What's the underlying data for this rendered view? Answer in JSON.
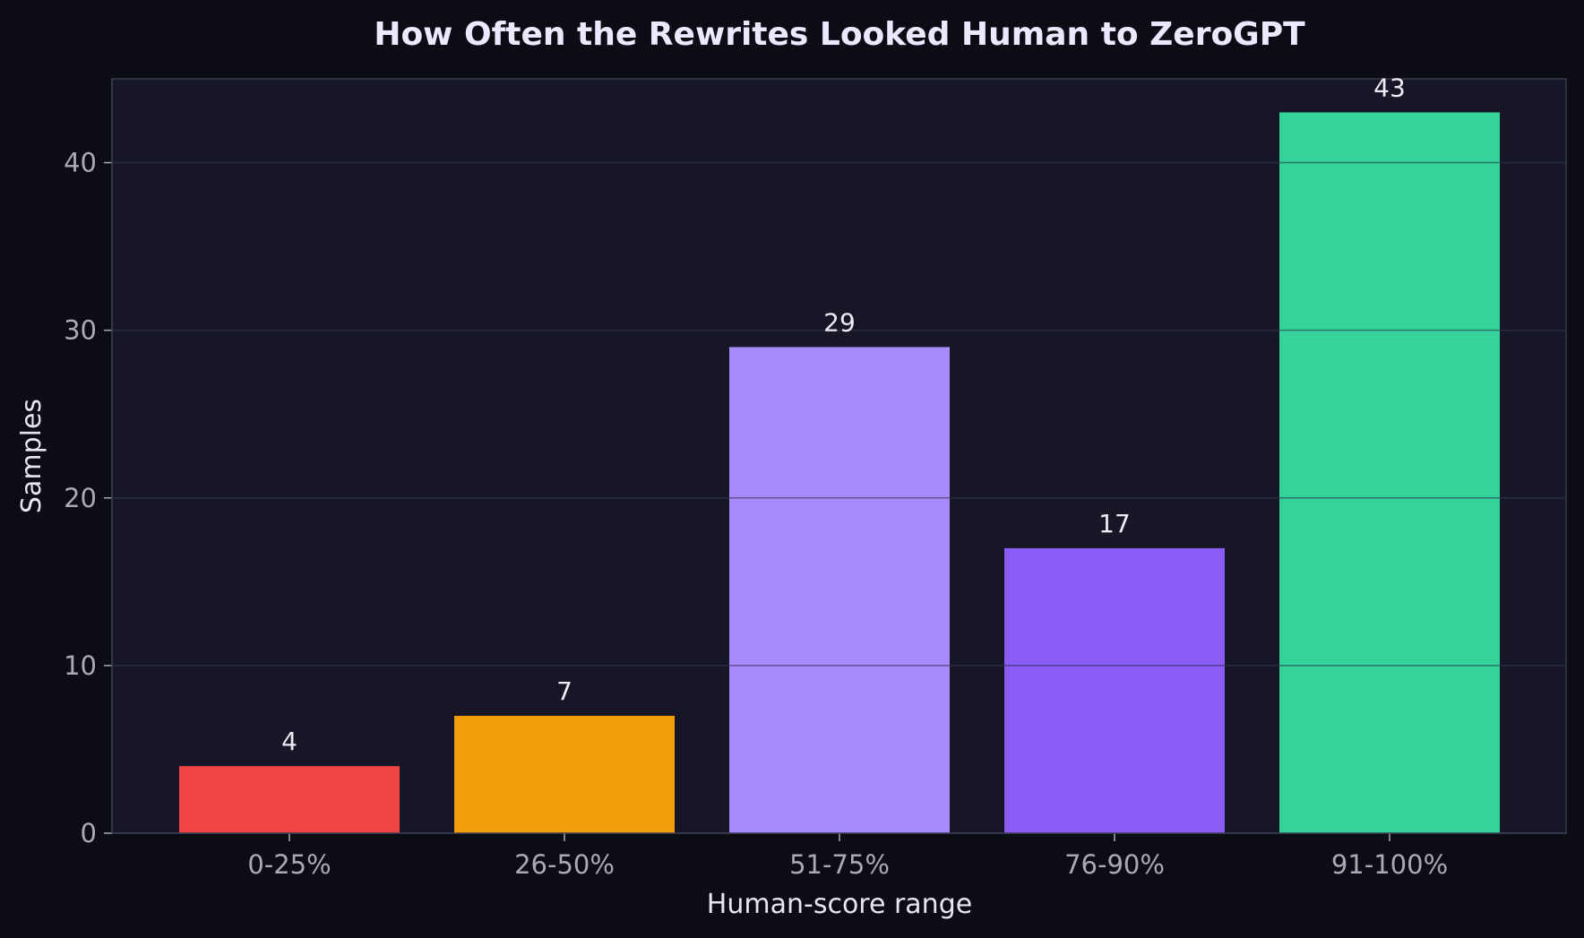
{
  "chart_data": {
    "type": "bar",
    "title": "How Often the Rewrites Looked Human to ZeroGPT",
    "xlabel": "Human-score range",
    "ylabel": "Samples",
    "categories": [
      "0-25%",
      "26-50%",
      "51-75%",
      "76-90%",
      "91-100%"
    ],
    "values": [
      4,
      7,
      29,
      17,
      43
    ],
    "colors": [
      "#ef4444",
      "#f59e0b",
      "#a78bfa",
      "#8b5cf6",
      "#34d399"
    ],
    "ylim": [
      0,
      45
    ],
    "yticks": [
      0,
      10,
      20,
      30,
      40
    ],
    "grid": true,
    "theme": {
      "background": "#0b0c14",
      "plot_background": "#161627",
      "grid_color": "#2a2a3d",
      "axis_color": "#3a3a50"
    }
  }
}
